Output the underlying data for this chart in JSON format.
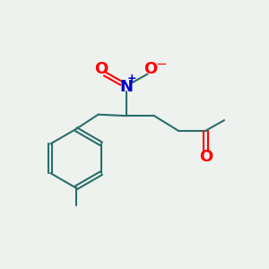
{
  "bg_color": "#eef2ee",
  "bond_color": "#2a6e6a",
  "bond_width": 1.5,
  "atom_colors": {
    "O": "#ff0000",
    "N": "#0000cc"
  },
  "font_size": 11,
  "figsize": [
    3.0,
    3.0
  ],
  "dpi": 100,
  "xlim": [
    0,
    10
  ],
  "ylim": [
    0,
    10
  ]
}
